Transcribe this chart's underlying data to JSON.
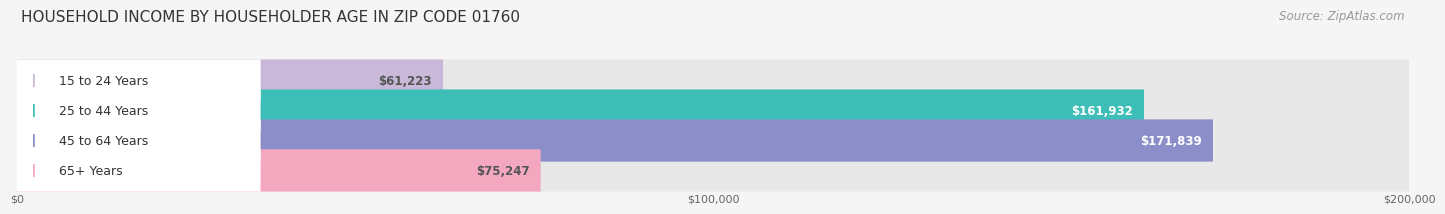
{
  "title": "HOUSEHOLD INCOME BY HOUSEHOLDER AGE IN ZIP CODE 01760",
  "source": "Source: ZipAtlas.com",
  "categories": [
    "15 to 24 Years",
    "25 to 44 Years",
    "45 to 64 Years",
    "65+ Years"
  ],
  "values": [
    61223,
    161932,
    171839,
    75247
  ],
  "bar_colors": [
    "#c9b8d8",
    "#3dbfb8",
    "#8b8ec8",
    "#f4a8c0"
  ],
  "label_colors": [
    "#555555",
    "#ffffff",
    "#ffffff",
    "#555555"
  ],
  "value_labels": [
    "$61,223",
    "$161,932",
    "$171,839",
    "$75,247"
  ],
  "xlim": [
    0,
    200000
  ],
  "xticks": [
    0,
    100000,
    200000
  ],
  "xtick_labels": [
    "$0",
    "$100,000",
    "$200,000"
  ],
  "background_color": "#f5f5f5",
  "bar_bg_color": "#e8e8e8",
  "title_fontsize": 11,
  "source_fontsize": 8.5,
  "label_fontsize": 9,
  "value_fontsize": 8.5
}
